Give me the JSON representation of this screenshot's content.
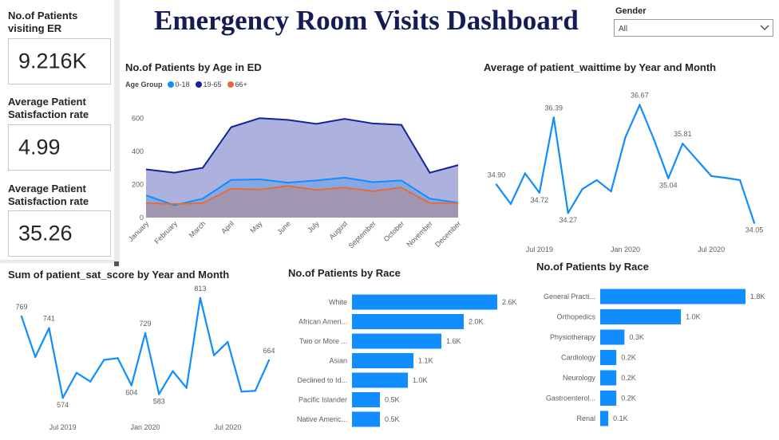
{
  "dashboard": {
    "title": "Emergency Room Visits Dashboard"
  },
  "kpis": [
    {
      "title": "No.of Patients visiting ER",
      "value": "9.216K"
    },
    {
      "title": "Average Patient Satisfaction rate",
      "value": "4.99"
    },
    {
      "title": "Average Patient Satisfaction rate",
      "value": "35.26"
    }
  ],
  "filter": {
    "label": "Gender",
    "selected": "All"
  },
  "colors": {
    "teal": "#118dff",
    "navy": "#12239e",
    "orange": "#e66c37",
    "title": "#141c56"
  },
  "age_chart": {
    "title": "No.of Patients by Age in ED",
    "legend_title": "Age Group",
    "chart_data": {
      "type": "area",
      "categories": [
        "January",
        "February",
        "March",
        "April",
        "May",
        "June",
        "July",
        "August",
        "September",
        "October",
        "November",
        "December"
      ],
      "ylim": [
        0,
        700
      ],
      "yticks": [
        0,
        200,
        400,
        600
      ],
      "series": [
        {
          "name": "0-18",
          "color": "#118dff",
          "values": [
            135,
            75,
            115,
            228,
            232,
            212,
            225,
            242,
            215,
            225,
            115,
            90
          ]
        },
        {
          "name": "19-65",
          "color": "#12239e",
          "values": [
            292,
            272,
            302,
            548,
            602,
            592,
            568,
            598,
            570,
            562,
            272,
            318
          ]
        },
        {
          "name": "66+",
          "color": "#e66c37",
          "values": [
            88,
            82,
            88,
            175,
            170,
            192,
            168,
            182,
            160,
            182,
            88,
            88
          ]
        }
      ]
    }
  },
  "wait_chart": {
    "title": "Average of patient_waittime by Year and Month",
    "chart_data": {
      "type": "line",
      "x": [
        "2019-04",
        "2019-05",
        "2019-06",
        "2019-07",
        "2019-08",
        "2019-09",
        "2019-10",
        "2019-11",
        "2019-12",
        "2020-01",
        "2020-02",
        "2020-03",
        "2020-04",
        "2020-05",
        "2020-06",
        "2020-07",
        "2020-08",
        "2020-09",
        "2020-10"
      ],
      "values": [
        34.9,
        34.47,
        35.15,
        34.72,
        36.39,
        34.27,
        34.8,
        35.0,
        34.75,
        35.95,
        36.67,
        35.9,
        35.04,
        35.81,
        35.45,
        35.09,
        35.05,
        35.0,
        34.05
      ],
      "data_labels": {
        "0": "34.90",
        "3": "34.72",
        "4": "36.39",
        "5": "34.27",
        "10": "36.67",
        "12": "35.04",
        "13": "35.81",
        "18": "34.05"
      },
      "xticks": {
        "3": "Jul 2019",
        "9": "Jan 2020",
        "15": "Jul 2020"
      },
      "ylim": [
        33.6,
        37.0
      ]
    }
  },
  "sat_chart": {
    "title": "Sum of patient_sat_score by Year and Month",
    "chart_data": {
      "type": "line",
      "x": [
        "2019-04",
        "2019-05",
        "2019-06",
        "2019-07",
        "2019-08",
        "2019-09",
        "2019-10",
        "2019-11",
        "2019-12",
        "2020-01",
        "2020-02",
        "2020-03",
        "2020-04",
        "2020-05",
        "2020-06",
        "2020-07",
        "2020-08",
        "2020-09",
        "2020-10"
      ],
      "values": [
        769,
        672,
        741,
        574,
        634,
        613,
        665,
        669,
        604,
        729,
        583,
        638,
        598,
        813,
        676,
        708,
        589,
        591,
        664
      ],
      "data_labels": {
        "0": "769",
        "2": "741",
        "3": "574",
        "8": "604",
        "9": "729",
        "10": "583",
        "13": "813",
        "18": "664"
      },
      "xticks": {
        "3": "Jul 2019",
        "9": "Jan 2020",
        "15": "Jul 2020"
      },
      "ylim": [
        540,
        830
      ]
    }
  },
  "race_chart": {
    "title": "No.of Patients by Race",
    "chart_data": {
      "type": "bar",
      "categories": [
        "White",
        "African Ameri...",
        "Two or More ...",
        "Asian",
        "Declined to Id...",
        "Pacific Islander",
        "Native Americ..."
      ],
      "values": [
        2.6,
        2.0,
        1.6,
        1.1,
        1.0,
        0.5,
        0.5
      ],
      "value_labels": [
        "2.6K",
        "2.0K",
        "1.6K",
        "1.1K",
        "1.0K",
        "0.5K",
        "0.5K"
      ],
      "unit": "K"
    }
  },
  "dept_chart": {
    "title": "No.of Patients by Race",
    "chart_data": {
      "type": "bar",
      "categories": [
        "General Practi...",
        "Orthopedics",
        "Physiotherapy",
        "Cardiology",
        "Neurology",
        "Gastroenterol...",
        "Renal"
      ],
      "values": [
        1.8,
        1.0,
        0.3,
        0.2,
        0.2,
        0.2,
        0.1
      ],
      "value_labels": [
        "1.8K",
        "1.0K",
        "0.3K",
        "0.2K",
        "0.2K",
        "0.2K",
        "0.1K"
      ],
      "unit": "K"
    }
  }
}
